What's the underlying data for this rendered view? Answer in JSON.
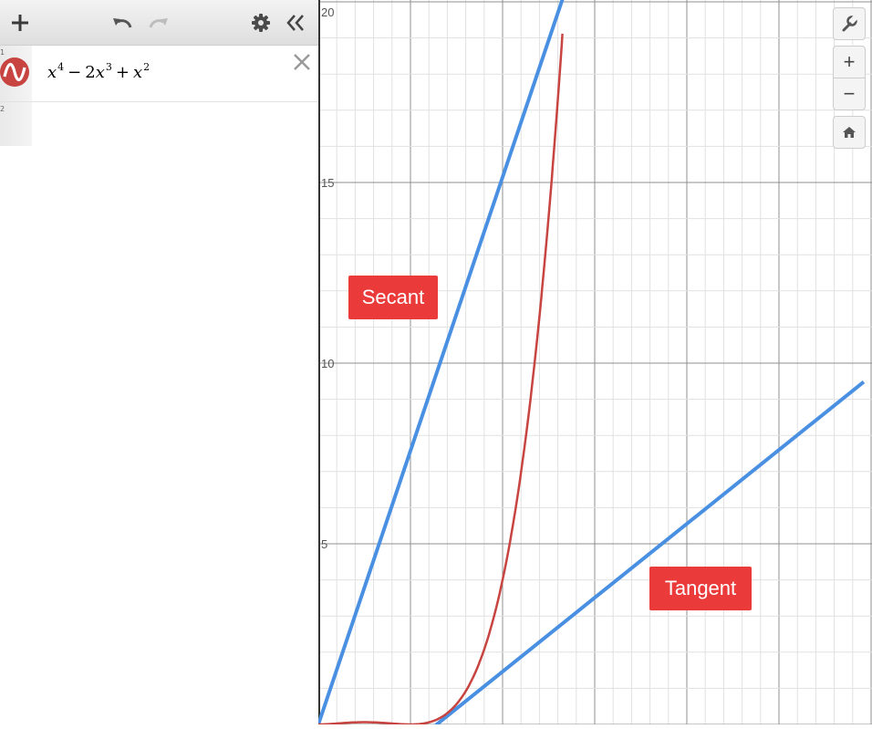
{
  "toolbar": {
    "icons": [
      "plus-icon",
      "undo-icon",
      "redo-icon",
      "gear-icon",
      "collapse-panel-icon"
    ]
  },
  "expressions": [
    {
      "index": "1",
      "icon": "function-wave-icon",
      "color": "#c74440",
      "latex": "x^4 - 2x^3 + x^2",
      "parts": {
        "x1": "x",
        "e1": "4",
        "minus": "−",
        "coef": "2",
        "x2": "x",
        "e2": "3",
        "plus": "+",
        "x3": "x",
        "e3": "2"
      }
    },
    {
      "index": "2"
    }
  ],
  "graph": {
    "y_ticks": [
      "20",
      "15",
      "10",
      "5"
    ],
    "labels": {
      "secant": "Secant",
      "tangent": "Tangent"
    },
    "colors": {
      "curve": "#c74440",
      "lines": "#4a90e2",
      "label_bg": "#ea3a3a"
    }
  },
  "controls": {
    "icons": [
      "wrench-icon",
      "zoom-in-icon",
      "zoom-out-icon",
      "home-icon"
    ],
    "zoom_in": "+",
    "zoom_out": "−"
  },
  "chart_data": {
    "type": "line",
    "ylim": [
      0,
      20
    ],
    "y_ticks": [
      5,
      10,
      15,
      20
    ],
    "series": [
      {
        "kind": "curve",
        "expression": "x^4 - 2x^3 + x^2",
        "color": "#c74440"
      },
      {
        "kind": "line",
        "role": "secant",
        "color": "#4a90e2"
      },
      {
        "kind": "line",
        "role": "tangent",
        "color": "#4a90e2"
      }
    ]
  }
}
